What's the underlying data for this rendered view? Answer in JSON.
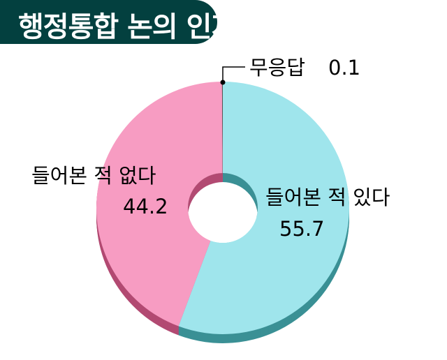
{
  "title": "행정통합 논의 인지",
  "chart_data": {
    "type": "pie",
    "donut": true,
    "three_d": true,
    "title": "행정통합 논의 인지",
    "categories": [
      "들어본 적 있다",
      "들어본 적 없다",
      "무응답"
    ],
    "values": [
      55.7,
      44.2,
      0.1
    ],
    "colors": [
      "#9fe5ec",
      "#f79cc2",
      "#555555"
    ],
    "side_colors": [
      "#3a9095",
      "#b24a72",
      "#333333"
    ],
    "start": "12 o'clock",
    "direction": "clockwise"
  }
}
